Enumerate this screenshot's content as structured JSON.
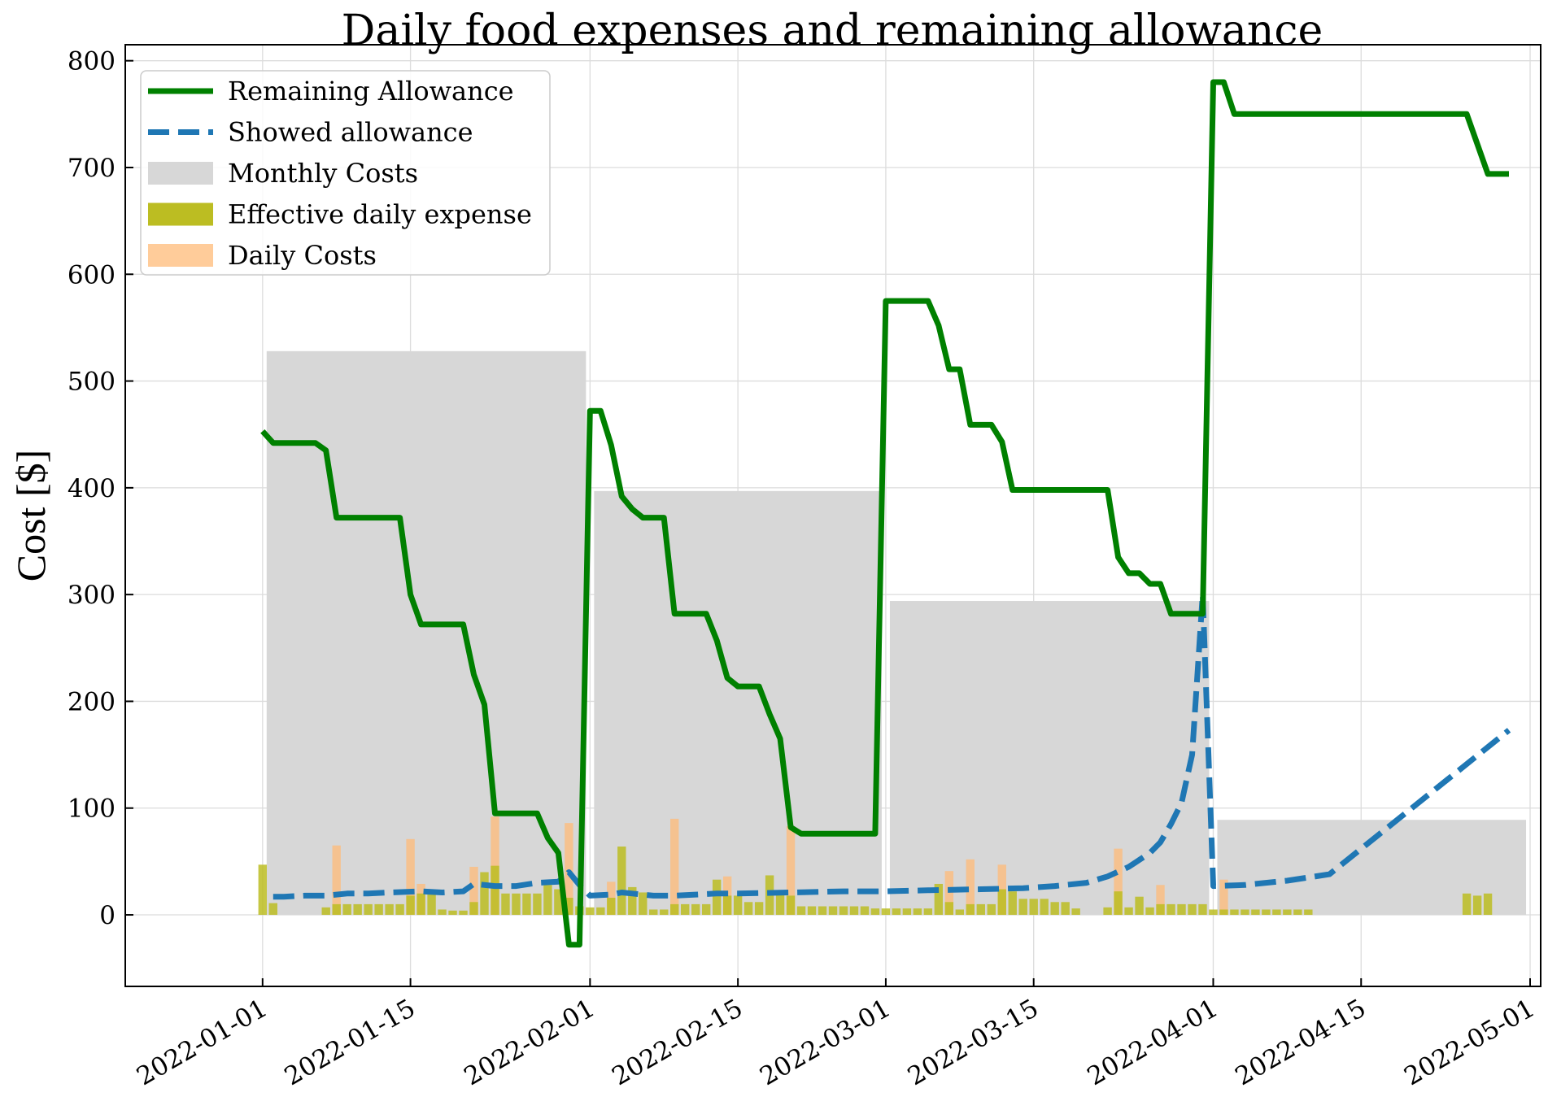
{
  "chart_data": {
    "type": "line+bar",
    "title": "Daily food expenses and remaining allowance",
    "xlabel": "",
    "ylabel": "Cost [$]",
    "xlim": [
      "2021-12-19",
      "2022-05-02"
    ],
    "ylim": [
      -67,
      815
    ],
    "grid": true,
    "legend_position": "top-left",
    "x_ticks": [
      "2022-01-01",
      "2022-01-15",
      "2022-02-01",
      "2022-02-15",
      "2022-03-01",
      "2022-03-15",
      "2022-04-01",
      "2022-04-15",
      "2022-05-01"
    ],
    "y_ticks": [
      0,
      100,
      200,
      300,
      400,
      500,
      600,
      700,
      800
    ],
    "colors": {
      "remaining": "#008000",
      "showed": "#1f77b4",
      "monthly": "#d7d7d7",
      "effective": "#bcbd22",
      "daily": "#ffbb78"
    },
    "series": [
      {
        "name": "Remaining Allowance",
        "kind": "line",
        "points": [
          [
            "2022-01-01",
            453
          ],
          [
            "2022-01-02",
            442
          ],
          [
            "2022-01-06",
            442
          ],
          [
            "2022-01-07",
            435
          ],
          [
            "2022-01-08",
            372
          ],
          [
            "2022-01-14",
            372
          ],
          [
            "2022-01-15",
            300
          ],
          [
            "2022-01-16",
            272
          ],
          [
            "2022-01-20",
            272
          ],
          [
            "2022-01-21",
            225
          ],
          [
            "2022-01-22",
            197
          ],
          [
            "2022-01-23",
            95
          ],
          [
            "2022-01-27",
            95
          ],
          [
            "2022-01-28",
            72
          ],
          [
            "2022-01-29",
            58
          ],
          [
            "2022-01-30",
            -28
          ],
          [
            "2022-01-31",
            -28
          ],
          [
            "2022-02-01",
            472
          ],
          [
            "2022-02-02",
            472
          ],
          [
            "2022-02-03",
            440
          ],
          [
            "2022-02-04",
            392
          ],
          [
            "2022-02-05",
            380
          ],
          [
            "2022-02-06",
            372
          ],
          [
            "2022-02-08",
            372
          ],
          [
            "2022-02-09",
            282
          ],
          [
            "2022-02-12",
            282
          ],
          [
            "2022-02-13",
            257
          ],
          [
            "2022-02-14",
            222
          ],
          [
            "2022-02-15",
            214
          ],
          [
            "2022-02-17",
            214
          ],
          [
            "2022-02-18",
            188
          ],
          [
            "2022-02-19",
            165
          ],
          [
            "2022-02-20",
            82
          ],
          [
            "2022-02-21",
            76
          ],
          [
            "2022-02-28",
            76
          ],
          [
            "2022-03-01",
            575
          ],
          [
            "2022-03-05",
            575
          ],
          [
            "2022-03-06",
            552
          ],
          [
            "2022-03-07",
            511
          ],
          [
            "2022-03-08",
            511
          ],
          [
            "2022-03-09",
            459
          ],
          [
            "2022-03-11",
            459
          ],
          [
            "2022-03-12",
            443
          ],
          [
            "2022-03-13",
            398
          ],
          [
            "2022-03-22",
            398
          ],
          [
            "2022-03-23",
            335
          ],
          [
            "2022-03-24",
            320
          ],
          [
            "2022-03-25",
            320
          ],
          [
            "2022-03-26",
            310
          ],
          [
            "2022-03-27",
            310
          ],
          [
            "2022-03-28",
            282
          ],
          [
            "2022-03-31",
            282
          ],
          [
            "2022-04-01",
            780
          ],
          [
            "2022-04-02",
            780
          ],
          [
            "2022-04-03",
            750
          ],
          [
            "2022-04-25",
            750
          ],
          [
            "2022-04-27",
            694
          ],
          [
            "2022-04-29",
            694
          ]
        ]
      },
      {
        "name": "Showed allowance",
        "kind": "line",
        "style": "dashed",
        "points": [
          [
            "2022-01-02",
            17
          ],
          [
            "2022-01-03",
            17
          ],
          [
            "2022-01-05",
            18
          ],
          [
            "2022-01-07",
            18
          ],
          [
            "2022-01-09",
            20
          ],
          [
            "2022-01-11",
            20
          ],
          [
            "2022-01-13",
            21
          ],
          [
            "2022-01-16",
            22
          ],
          [
            "2022-01-18",
            21
          ],
          [
            "2022-01-20",
            22
          ],
          [
            "2022-01-21",
            29
          ],
          [
            "2022-01-23",
            27
          ],
          [
            "2022-01-25",
            27
          ],
          [
            "2022-01-27",
            30
          ],
          [
            "2022-01-29",
            31
          ],
          [
            "2022-01-30",
            40
          ],
          [
            "2022-01-31",
            28
          ],
          [
            "2022-02-01",
            18
          ],
          [
            "2022-02-03",
            19
          ],
          [
            "2022-02-04",
            21
          ],
          [
            "2022-02-05",
            20
          ],
          [
            "2022-02-07",
            18
          ],
          [
            "2022-02-09",
            18
          ],
          [
            "2022-02-11",
            19
          ],
          [
            "2022-02-13",
            20
          ],
          [
            "2022-02-15",
            20
          ],
          [
            "2022-02-20",
            21
          ],
          [
            "2022-02-25",
            22
          ],
          [
            "2022-03-01",
            22
          ],
          [
            "2022-03-05",
            23
          ],
          [
            "2022-03-10",
            24
          ],
          [
            "2022-03-14",
            25
          ],
          [
            "2022-03-17",
            27
          ],
          [
            "2022-03-20",
            30
          ],
          [
            "2022-03-22",
            36
          ],
          [
            "2022-03-24",
            45
          ],
          [
            "2022-03-26",
            58
          ],
          [
            "2022-03-27",
            68
          ],
          [
            "2022-03-28",
            85
          ],
          [
            "2022-03-29",
            105
          ],
          [
            "2022-03-30",
            150
          ],
          [
            "2022-03-31",
            300
          ],
          [
            "2022-04-01",
            27
          ],
          [
            "2022-04-04",
            28
          ],
          [
            "2022-04-08",
            32
          ],
          [
            "2022-04-12",
            38
          ],
          [
            "2022-04-29",
            173
          ]
        ]
      },
      {
        "name": "Monthly Costs",
        "kind": "bar",
        "bars": [
          {
            "start": "2022-01-01",
            "end": "2022-01-31",
            "value": 528
          },
          {
            "start": "2022-02-01",
            "end": "2022-02-28",
            "value": 397
          },
          {
            "start": "2022-03-01",
            "end": "2022-03-31",
            "value": 294
          },
          {
            "start": "2022-04-01",
            "end": "2022-04-30",
            "value": 89
          }
        ]
      },
      {
        "name": "Effective daily expense",
        "kind": "bar",
        "points": [
          [
            "2022-01-01",
            47
          ],
          [
            "2022-01-02",
            11
          ],
          [
            "2022-01-07",
            7
          ],
          [
            "2022-01-08",
            10
          ],
          [
            "2022-01-09",
            10
          ],
          [
            "2022-01-10",
            10
          ],
          [
            "2022-01-11",
            10
          ],
          [
            "2022-01-12",
            10
          ],
          [
            "2022-01-13",
            10
          ],
          [
            "2022-01-14",
            10
          ],
          [
            "2022-01-15",
            18
          ],
          [
            "2022-01-16",
            20
          ],
          [
            "2022-01-17",
            21
          ],
          [
            "2022-01-18",
            5
          ],
          [
            "2022-01-19",
            4
          ],
          [
            "2022-01-20",
            4
          ],
          [
            "2022-01-21",
            12
          ],
          [
            "2022-01-22",
            40
          ],
          [
            "2022-01-23",
            46
          ],
          [
            "2022-01-24",
            20
          ],
          [
            "2022-01-25",
            20
          ],
          [
            "2022-01-26",
            20
          ],
          [
            "2022-01-27",
            20
          ],
          [
            "2022-01-28",
            28
          ],
          [
            "2022-01-29",
            24
          ],
          [
            "2022-01-30",
            16
          ],
          [
            "2022-01-31",
            8
          ],
          [
            "2022-02-01",
            7
          ],
          [
            "2022-02-02",
            7
          ],
          [
            "2022-02-03",
            16
          ],
          [
            "2022-02-04",
            64
          ],
          [
            "2022-02-05",
            26
          ],
          [
            "2022-02-06",
            21
          ],
          [
            "2022-02-07",
            5
          ],
          [
            "2022-02-08",
            5
          ],
          [
            "2022-02-09",
            10
          ],
          [
            "2022-02-10",
            10
          ],
          [
            "2022-02-11",
            10
          ],
          [
            "2022-02-12",
            10
          ],
          [
            "2022-02-13",
            33
          ],
          [
            "2022-02-14",
            18
          ],
          [
            "2022-02-15",
            18
          ],
          [
            "2022-02-16",
            12
          ],
          [
            "2022-02-17",
            12
          ],
          [
            "2022-02-18",
            37
          ],
          [
            "2022-02-19",
            22
          ],
          [
            "2022-02-20",
            18
          ],
          [
            "2022-02-21",
            8
          ],
          [
            "2022-02-22",
            8
          ],
          [
            "2022-02-23",
            8
          ],
          [
            "2022-02-24",
            8
          ],
          [
            "2022-02-25",
            8
          ],
          [
            "2022-02-26",
            8
          ],
          [
            "2022-02-27",
            8
          ],
          [
            "2022-02-28",
            6
          ],
          [
            "2022-03-01",
            6
          ],
          [
            "2022-03-02",
            6
          ],
          [
            "2022-03-03",
            6
          ],
          [
            "2022-03-04",
            6
          ],
          [
            "2022-03-05",
            6
          ],
          [
            "2022-03-06",
            29
          ],
          [
            "2022-03-07",
            12
          ],
          [
            "2022-03-08",
            5
          ],
          [
            "2022-03-09",
            10
          ],
          [
            "2022-03-10",
            10
          ],
          [
            "2022-03-11",
            10
          ],
          [
            "2022-03-12",
            24
          ],
          [
            "2022-03-13",
            22
          ],
          [
            "2022-03-14",
            15
          ],
          [
            "2022-03-15",
            15
          ],
          [
            "2022-03-16",
            15
          ],
          [
            "2022-03-17",
            12
          ],
          [
            "2022-03-18",
            12
          ],
          [
            "2022-03-19",
            6
          ],
          [
            "2022-03-22",
            7
          ],
          [
            "2022-03-23",
            22
          ],
          [
            "2022-03-24",
            7
          ],
          [
            "2022-03-25",
            17
          ],
          [
            "2022-03-26",
            7
          ],
          [
            "2022-03-27",
            10
          ],
          [
            "2022-03-28",
            10
          ],
          [
            "2022-03-29",
            10
          ],
          [
            "2022-03-30",
            10
          ],
          [
            "2022-03-31",
            10
          ],
          [
            "2022-04-01",
            5
          ],
          [
            "2022-04-02",
            5
          ],
          [
            "2022-04-03",
            5
          ],
          [
            "2022-04-04",
            5
          ],
          [
            "2022-04-05",
            5
          ],
          [
            "2022-04-06",
            5
          ],
          [
            "2022-04-07",
            5
          ],
          [
            "2022-04-08",
            5
          ],
          [
            "2022-04-09",
            5
          ],
          [
            "2022-04-10",
            5
          ],
          [
            "2022-04-25",
            20
          ],
          [
            "2022-04-26",
            18
          ],
          [
            "2022-04-27",
            20
          ]
        ]
      },
      {
        "name": "Daily Costs",
        "kind": "bar",
        "points": [
          [
            "2022-01-08",
            65
          ],
          [
            "2022-01-15",
            71
          ],
          [
            "2022-01-16",
            29
          ],
          [
            "2022-01-21",
            45
          ],
          [
            "2022-01-23",
            92
          ],
          [
            "2022-01-30",
            86
          ],
          [
            "2022-02-03",
            31
          ],
          [
            "2022-02-09",
            90
          ],
          [
            "2022-02-14",
            36
          ],
          [
            "2022-02-20",
            83
          ],
          [
            "2022-03-07",
            41
          ],
          [
            "2022-03-09",
            52
          ],
          [
            "2022-03-12",
            47
          ],
          [
            "2022-03-23",
            62
          ],
          [
            "2022-03-27",
            28
          ],
          [
            "2022-04-02",
            33
          ]
        ]
      }
    ]
  }
}
